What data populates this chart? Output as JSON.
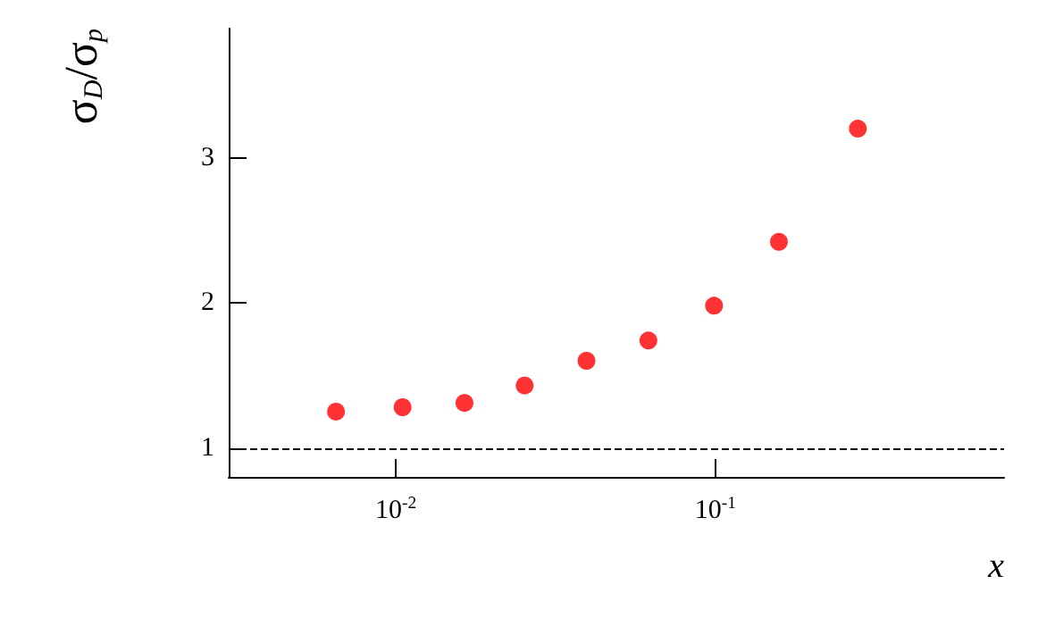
{
  "chart_data": {
    "type": "scatter",
    "xlabel": "x",
    "ylabel": "σ$_{D}$/σ$_{p}$",
    "x": [
      0.0065,
      0.0105,
      0.0164,
      0.0253,
      0.0395,
      0.0617,
      0.099,
      0.158,
      0.279
    ],
    "series": [
      {
        "color": "#ff0000",
        "values": [
          1.25,
          1.28,
          1.31,
          1.43,
          1.6,
          1.74,
          1.98,
          2.42,
          3.2
        ]
      }
    ],
    "log": "x",
    "xlim": [
      0.003,
      0.8
    ],
    "xticks": [
      {
        "value": 0.01,
        "label": "10$^{-2}$"
      },
      {
        "value": 0.1,
        "label": "10$^{-1}$"
      }
    ],
    "ylim": [
      0.8,
      3.89
    ],
    "yticks": [
      1,
      2,
      3
    ],
    "ref_lines": [
      {
        "axis": "y",
        "value": 1,
        "line_style": "dashed",
        "color": "#000000"
      }
    ],
    "grid": false,
    "marker": "circle"
  }
}
